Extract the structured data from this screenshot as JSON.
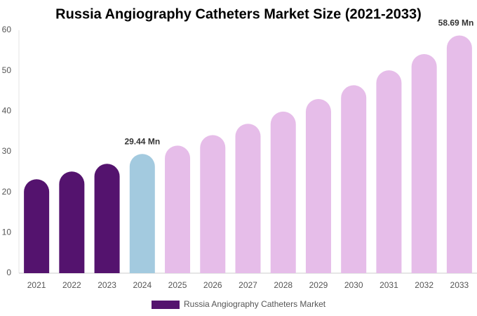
{
  "chart_data": {
    "type": "bar",
    "title": "Russia Angiography Catheters Market Size (2021-2033)",
    "categories": [
      "2021",
      "2022",
      "2023",
      "2024",
      "2025",
      "2026",
      "2027",
      "2028",
      "2029",
      "2030",
      "2031",
      "2032",
      "2033"
    ],
    "series": [
      {
        "name": "Russia Angiography Catheters Market",
        "color": "#54136e",
        "values": [
          23.2,
          25.1,
          27.0,
          29.44,
          31.5,
          34.1,
          36.9,
          39.9,
          43.0,
          46.4,
          50.1,
          54.1,
          58.69
        ],
        "value_labels": [
          null,
          null,
          null,
          "29.44 Mn",
          null,
          null,
          null,
          null,
          null,
          null,
          null,
          null,
          "58.69 Mn"
        ],
        "colors": [
          "#54136e",
          "#54136e",
          "#54136e",
          "#a3cadf",
          "#e6bde9",
          "#e6bde9",
          "#e6bde9",
          "#e6bde9",
          "#e6bde9",
          "#e6bde9",
          "#e6bde9",
          "#e6bde9",
          "#e6bde9"
        ]
      }
    ],
    "ylim": [
      0,
      60
    ],
    "yticks": [
      0,
      10,
      20,
      30,
      40,
      50,
      60
    ],
    "grid": false,
    "legend": "bottom"
  }
}
